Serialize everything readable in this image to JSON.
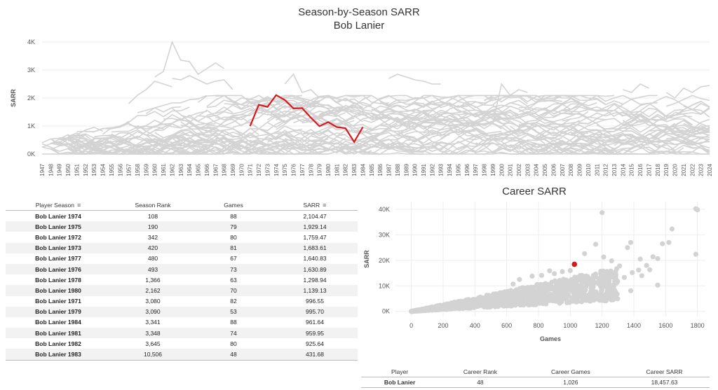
{
  "titles": {
    "line_title": "Season-by-Season SARR",
    "line_subtitle": "Bob Lanier",
    "scatter_title": "Career SARR"
  },
  "colors": {
    "highlight": "#d7191c",
    "background_series": "#d3d3d3",
    "grid": "#eeeeee"
  },
  "season_table": {
    "headers": [
      "Player Season",
      "Season Rank",
      "Games",
      "SARR"
    ],
    "sort_icon": "sort-descending-icon",
    "rows": [
      [
        "Bob Lanier 1974",
        "108",
        "88",
        "2,104.47"
      ],
      [
        "Bob Lanier 1975",
        "190",
        "79",
        "1,929.14"
      ],
      [
        "Bob Lanier 1972",
        "342",
        "80",
        "1,759.47"
      ],
      [
        "Bob Lanier 1973",
        "420",
        "81",
        "1,683.61"
      ],
      [
        "Bob Lanier 1977",
        "480",
        "67",
        "1,640.83"
      ],
      [
        "Bob Lanier 1976",
        "493",
        "73",
        "1,630.89"
      ],
      [
        "Bob Lanier 1978",
        "1,366",
        "63",
        "1,298.94"
      ],
      [
        "Bob Lanier 1980",
        "2,162",
        "70",
        "1,139.13"
      ],
      [
        "Bob Lanier 1971",
        "3,080",
        "82",
        "996.55"
      ],
      [
        "Bob Lanier 1979",
        "3,090",
        "53",
        "995.70"
      ],
      [
        "Bob Lanier 1984",
        "3,341",
        "88",
        "961.64"
      ],
      [
        "Bob Lanier 1981",
        "3,348",
        "74",
        "959.95"
      ],
      [
        "Bob Lanier 1982",
        "3,645",
        "80",
        "925.64"
      ],
      [
        "Bob Lanier 1983",
        "10,506",
        "48",
        "431.68"
      ]
    ]
  },
  "career_table": {
    "headers": [
      "Player",
      "Career Rank",
      "Career Games",
      "Career SARR"
    ],
    "row": [
      "Bob Lanier",
      "48",
      "1,026",
      "18,457.63"
    ]
  },
  "chart_data": [
    {
      "type": "line",
      "title": "Season-by-Season SARR",
      "subtitle": "Bob Lanier",
      "xlabel": "",
      "ylabel": "SARR",
      "x_range": [
        1947,
        2024
      ],
      "ylim": [
        0,
        4000
      ],
      "y_ticks": [
        0,
        1000,
        2000,
        3000,
        4000
      ],
      "y_tick_labels": [
        "0K",
        "1K",
        "2K",
        "3K",
        "4K"
      ],
      "highlight_series": {
        "name": "Bob Lanier",
        "x": [
          1971,
          1972,
          1973,
          1974,
          1975,
          1976,
          1977,
          1978,
          1979,
          1980,
          1981,
          1982,
          1983,
          1984
        ],
        "y": [
          996.55,
          1759.47,
          1683.61,
          2104.47,
          1929.14,
          1630.89,
          1640.83,
          1298.94,
          995.7,
          1139.13,
          959.95,
          925.64,
          431.68,
          961.64
        ]
      },
      "grid": true,
      "legend": "none"
    },
    {
      "type": "scatter",
      "title": "Career SARR",
      "xlabel": "Games",
      "ylabel": "SARR",
      "xlim": [
        -100,
        1850
      ],
      "ylim": [
        -2000,
        43000
      ],
      "x_ticks": [
        0,
        200,
        400,
        600,
        800,
        1000,
        1200,
        1400,
        1600,
        1800
      ],
      "y_ticks": [
        0,
        10000,
        20000,
        30000,
        40000
      ],
      "y_tick_labels": [
        "0K",
        "10K",
        "20K",
        "30K",
        "40K"
      ],
      "highlight_point": {
        "name": "Bob Lanier",
        "x": 1026,
        "y": 18457.63
      },
      "sample_points": [
        [
          1790,
          40200
        ],
        [
          1800,
          39800
        ],
        [
          1200,
          38700
        ],
        [
          1640,
          32300
        ],
        [
          1620,
          27000
        ],
        [
          1580,
          26500
        ],
        [
          1790,
          22400
        ],
        [
          1380,
          27000
        ],
        [
          1360,
          25000
        ],
        [
          1160,
          26300
        ],
        [
          1090,
          22600
        ],
        [
          1210,
          21300
        ],
        [
          1260,
          19800
        ],
        [
          1310,
          17800
        ],
        [
          1520,
          21400
        ],
        [
          1550,
          20700
        ],
        [
          1440,
          20500
        ],
        [
          1480,
          18000
        ],
        [
          1390,
          15200
        ],
        [
          1450,
          14000
        ],
        [
          1550,
          10300
        ],
        [
          1500,
          16300
        ],
        [
          1340,
          13300
        ],
        [
          1100,
          12400
        ],
        [
          1150,
          11000
        ],
        [
          1230,
          14000
        ],
        [
          1290,
          11100
        ],
        [
          950,
          15600
        ],
        [
          900,
          14800
        ],
        [
          870,
          15900
        ],
        [
          820,
          14100
        ],
        [
          760,
          13800
        ],
        [
          680,
          12500
        ],
        [
          640,
          10700
        ],
        [
          1380,
          8100
        ],
        [
          1430,
          16200
        ],
        [
          1000,
          16000
        ],
        [
          980,
          10500
        ]
      ],
      "grid": true,
      "legend": "none"
    }
  ]
}
